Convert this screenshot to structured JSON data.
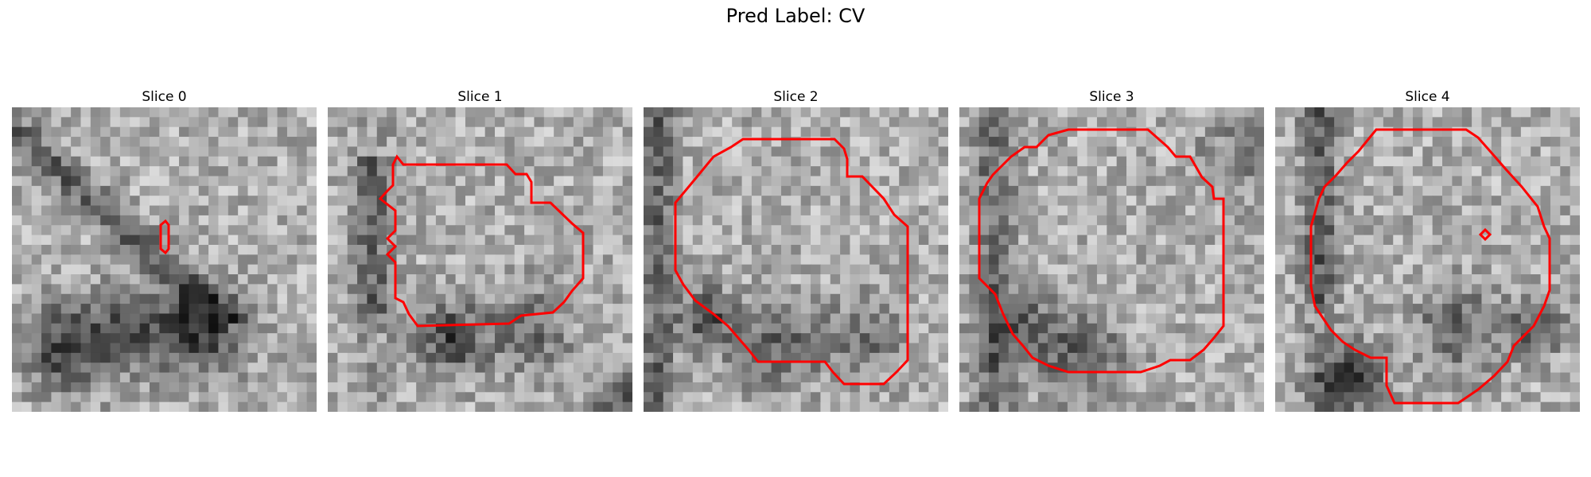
{
  "figure": {
    "title": "Pred Label: CV"
  },
  "slices": [
    {
      "label": "Slice 0",
      "contour_color": "#ff0000"
    },
    {
      "label": "Slice 1",
      "contour_color": "#ff0000"
    },
    {
      "label": "Slice 2",
      "contour_color": "#ff0000"
    },
    {
      "label": "Slice 3",
      "contour_color": "#ff0000"
    },
    {
      "label": "Slice 4",
      "contour_color": "#ff0000"
    }
  ]
}
